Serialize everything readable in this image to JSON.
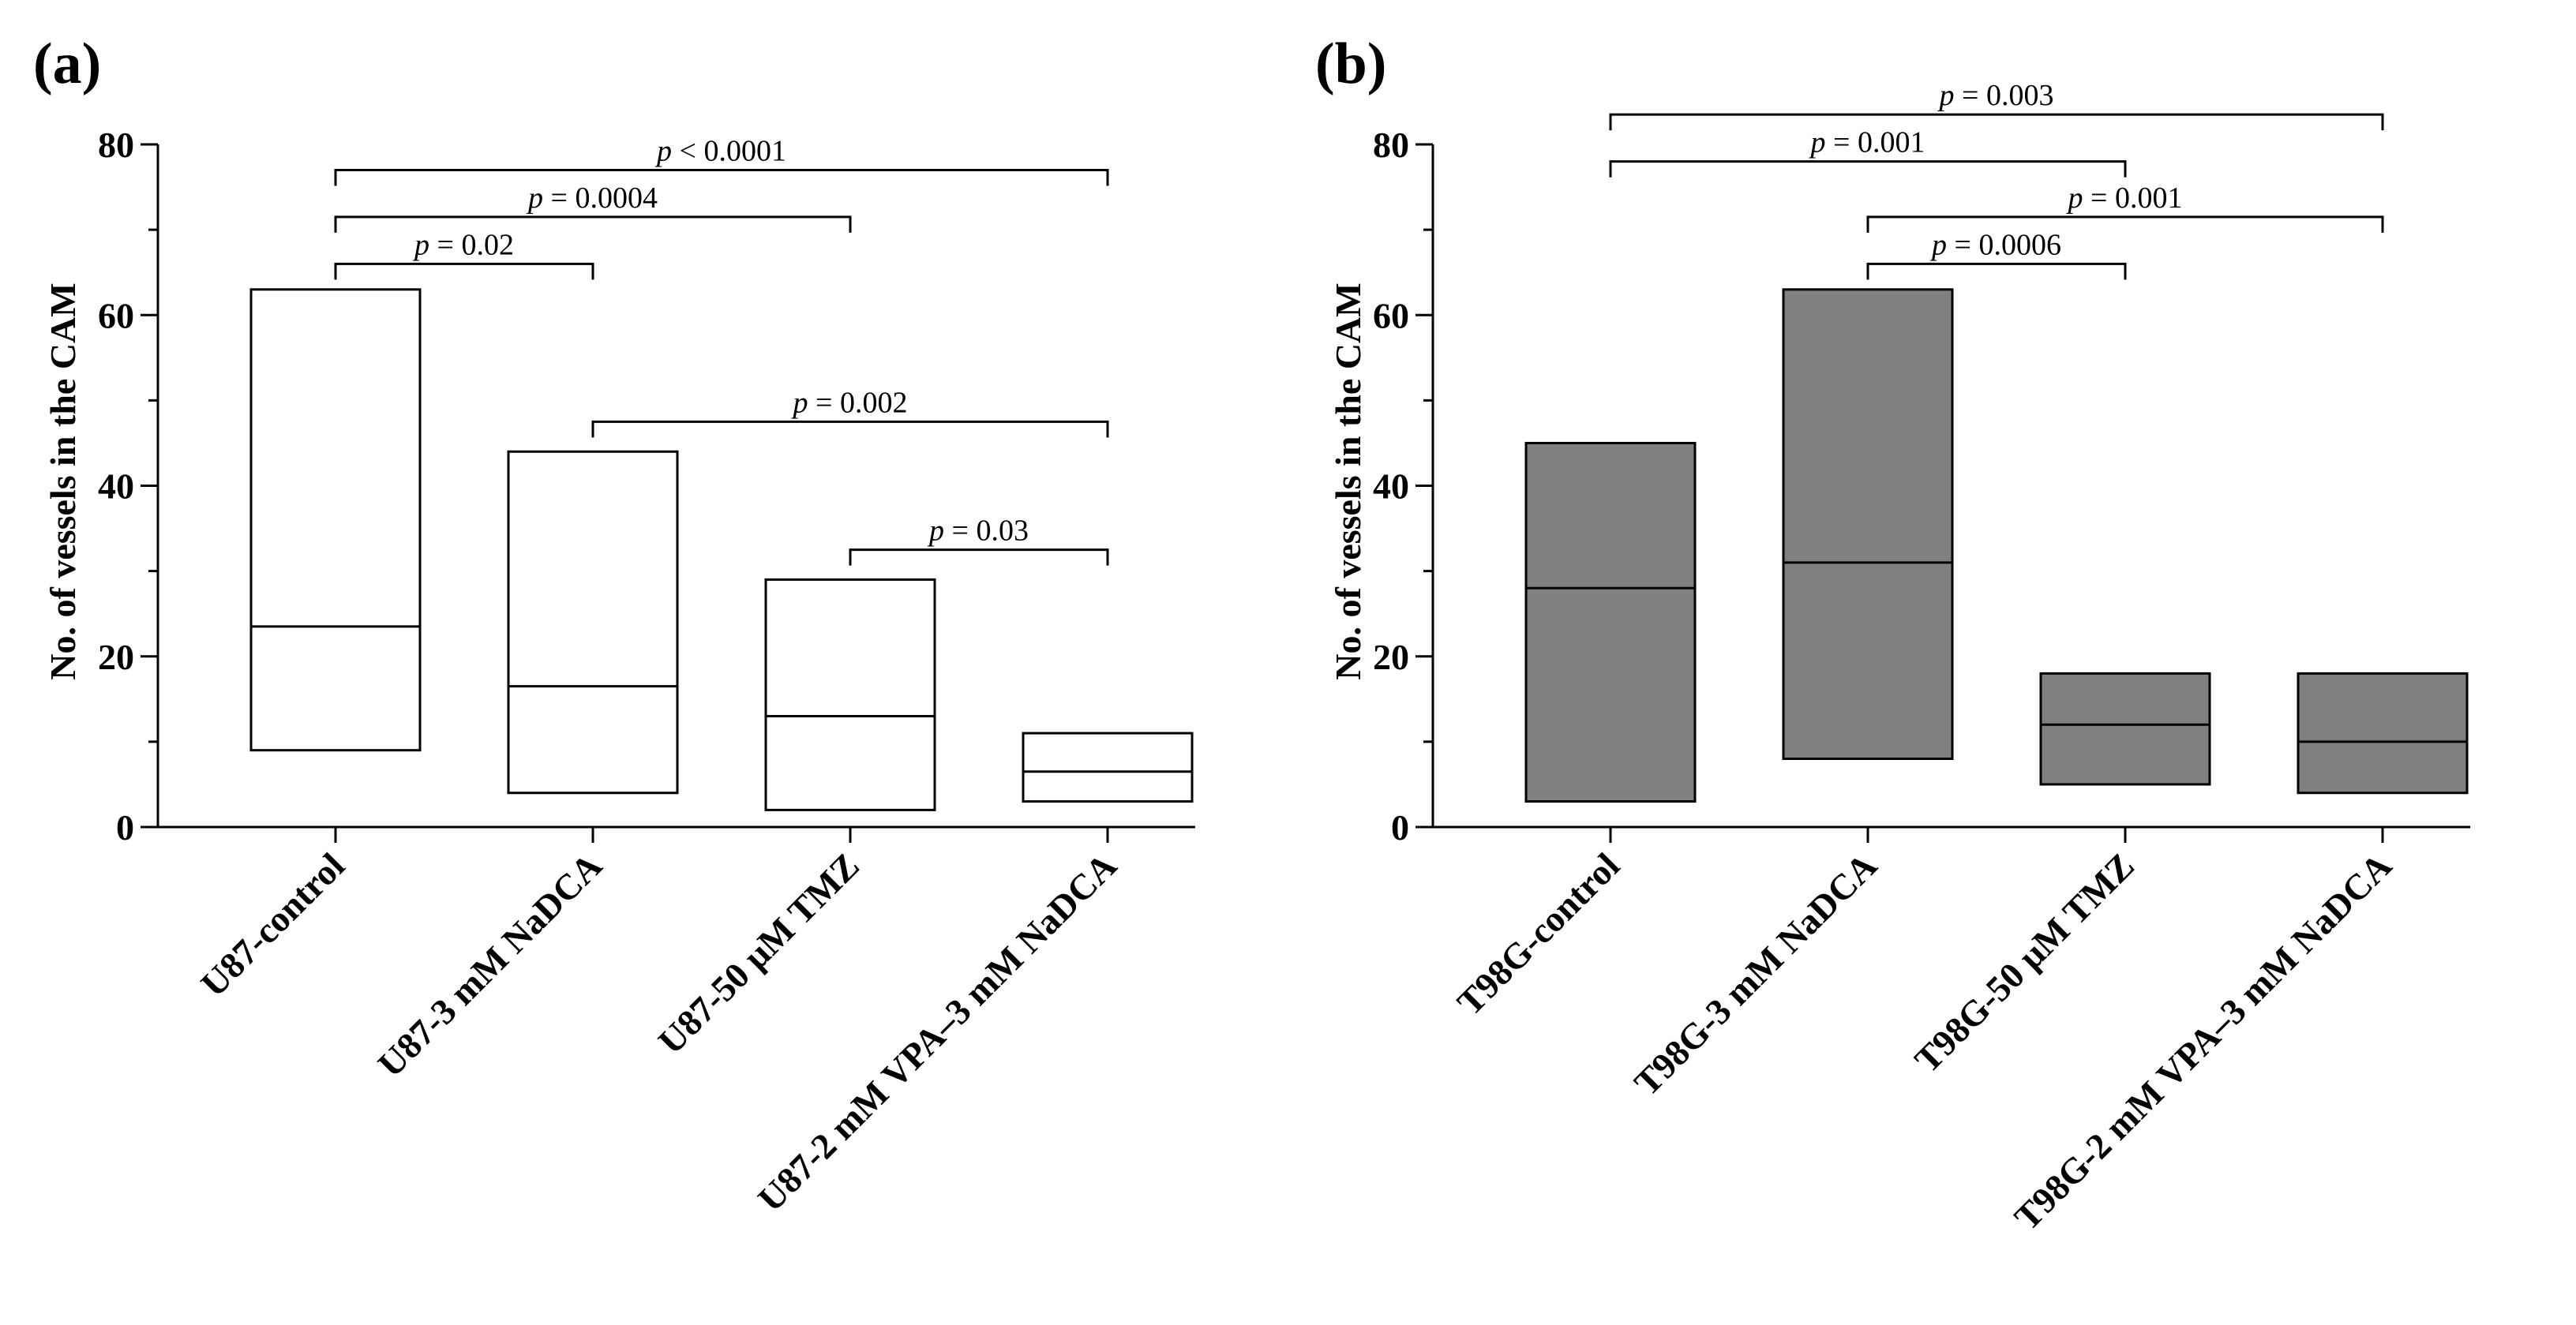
{
  "figure": {
    "panels": [
      "(a)",
      "(b)"
    ]
  },
  "chart_data": [
    {
      "type": "box",
      "panel_label": "(a)",
      "title": "",
      "xlabel": "",
      "ylabel": "No. of vessels in the CAM",
      "ylim": [
        0,
        80
      ],
      "yticks": [
        "0",
        "20",
        "40",
        "60",
        "80"
      ],
      "box_fill": "#ffffff",
      "categories": [
        "U87-control",
        "U87-3 mM NaDCA",
        "U87-50 μM TMZ",
        "U87-2 mM VPA–3 mM NaDCA"
      ],
      "min": [
        9,
        4,
        2,
        3
      ],
      "median": [
        23.5,
        16.5,
        13,
        6.5
      ],
      "max": [
        63,
        44,
        29,
        11
      ],
      "comparisons": [
        {
          "from": 0,
          "to": 3,
          "y": 77,
          "label": "p < 0.0001",
          "p_symbol": "p",
          "p_text": " < 0.0001"
        },
        {
          "from": 0,
          "to": 2,
          "y": 71.5,
          "label": "p = 0.0004",
          "p_symbol": "p",
          "p_text": " = 0.0004"
        },
        {
          "from": 0,
          "to": 1,
          "y": 66,
          "label": "p = 0.02",
          "p_symbol": "p",
          "p_text": " = 0.02"
        },
        {
          "from": 1,
          "to": 3,
          "y": 47.5,
          "label": "p = 0.002",
          "p_symbol": "p",
          "p_text": " = 0.002"
        },
        {
          "from": 2,
          "to": 3,
          "y": 32.5,
          "label": "p = 0.03",
          "p_symbol": "p",
          "p_text": " = 0.03"
        }
      ]
    },
    {
      "type": "box",
      "panel_label": "(b)",
      "title": "",
      "xlabel": "",
      "ylabel": "No. of vessels in the CAM",
      "ylim": [
        0,
        80
      ],
      "yticks": [
        "0",
        "20",
        "40",
        "60",
        "80"
      ],
      "box_fill": "#808080",
      "categories": [
        "T98G-control",
        "T98G-3 mM NaDCA",
        "T98G-50 μM TMZ",
        "T98G-2 mM VPA–3 mM NaDCA"
      ],
      "min": [
        3,
        8,
        5,
        4
      ],
      "median": [
        28,
        31,
        12,
        10
      ],
      "max": [
        45,
        63,
        18,
        18
      ],
      "comparisons": [
        {
          "from": 0,
          "to": 3,
          "y": 83.5,
          "label": "p = 0.003",
          "p_symbol": "p",
          "p_text": " = 0.003"
        },
        {
          "from": 0,
          "to": 2,
          "y": 78,
          "label": "p = 0.001",
          "p_symbol": "p",
          "p_text": " = 0.001"
        },
        {
          "from": 1,
          "to": 3,
          "y": 71.5,
          "label": "p = 0.001",
          "p_symbol": "p",
          "p_text": " = 0.001"
        },
        {
          "from": 1,
          "to": 2,
          "y": 66,
          "label": "p = 0.0006",
          "p_symbol": "p",
          "p_text": " = 0.0006"
        }
      ]
    }
  ]
}
